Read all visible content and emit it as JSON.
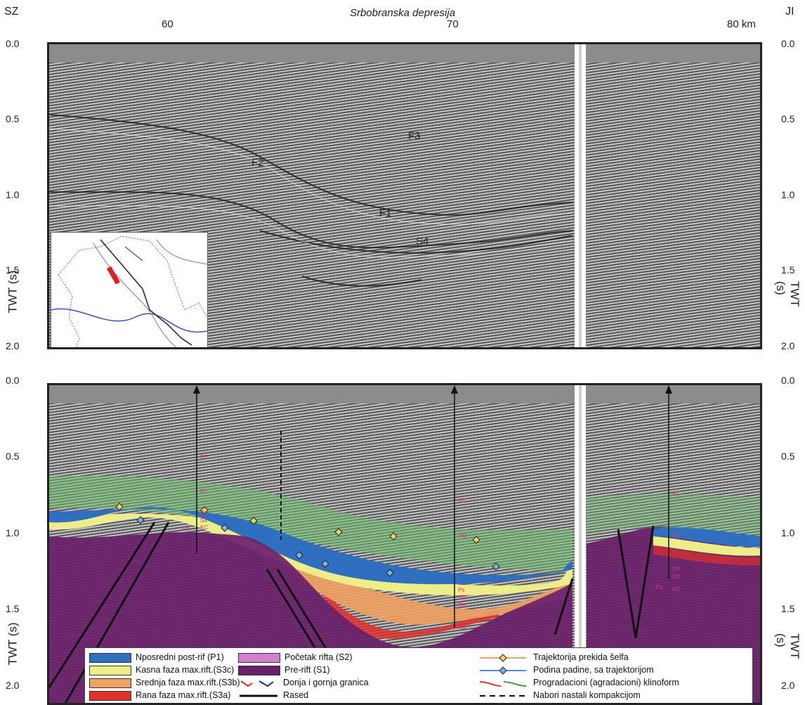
{
  "header": {
    "left_label": "SZ",
    "right_label": "JI",
    "subtitle": "Srbobranska depresija",
    "x_ticks": [
      "60",
      "70",
      "80 km"
    ]
  },
  "y_axis": {
    "ticks": [
      "0.0",
      "0.5",
      "1.0",
      "1.5",
      "2.0"
    ],
    "title": "TWT (s)"
  },
  "top_panel": {
    "horizons": [
      "F3",
      "F2",
      "F1",
      "S4"
    ]
  },
  "bottom_panel": {
    "well_labels": {
      "well1": [
        "PE",
        "P1",
        "F1",
        "S4",
        "KC",
        "Pz"
      ],
      "well2": [
        "HZ",
        "PM",
        "Ps",
        "SN",
        "SH",
        "KD"
      ],
      "well3": [
        "HZ",
        "PM",
        "SH",
        "KD",
        "Pz",
        "KO"
      ]
    }
  },
  "legend": {
    "left": [
      {
        "label": "Nposredni post-rif (P1)",
        "color": "#2e6fc0"
      },
      {
        "label": "Kasna faza max.rift.(S3c)",
        "color": "#eeee88"
      },
      {
        "label": "Srednja faza max.rift.(S3b)",
        "color": "#f0a060"
      },
      {
        "label": "Rana faza max.rift.(S3a)",
        "color": "#e0302a"
      }
    ],
    "middle": [
      {
        "label": "Početak rifta (S2)",
        "color": "#d27fcf"
      },
      {
        "label": "Pre-rift (S1)",
        "color": "#6a1f6a"
      },
      {
        "label": "Donja i gornja granica",
        "icon": "boundary-arrows-icon"
      },
      {
        "label": "Rased",
        "icon": "fault-line-icon"
      }
    ],
    "right": [
      {
        "label": "Trajektorija prekida šelfa",
        "icon": "shelf-break-trajectory-icon"
      },
      {
        "label": "Podina padine, sa trajektorijom",
        "icon": "slope-base-trajectory-icon"
      },
      {
        "label": "Progradacioni (agradacioni) klinoform",
        "icon": "clinoform-icon"
      },
      {
        "label": "Nabori nastali kompakcijom",
        "icon": "dashed-line-icon"
      }
    ]
  }
}
